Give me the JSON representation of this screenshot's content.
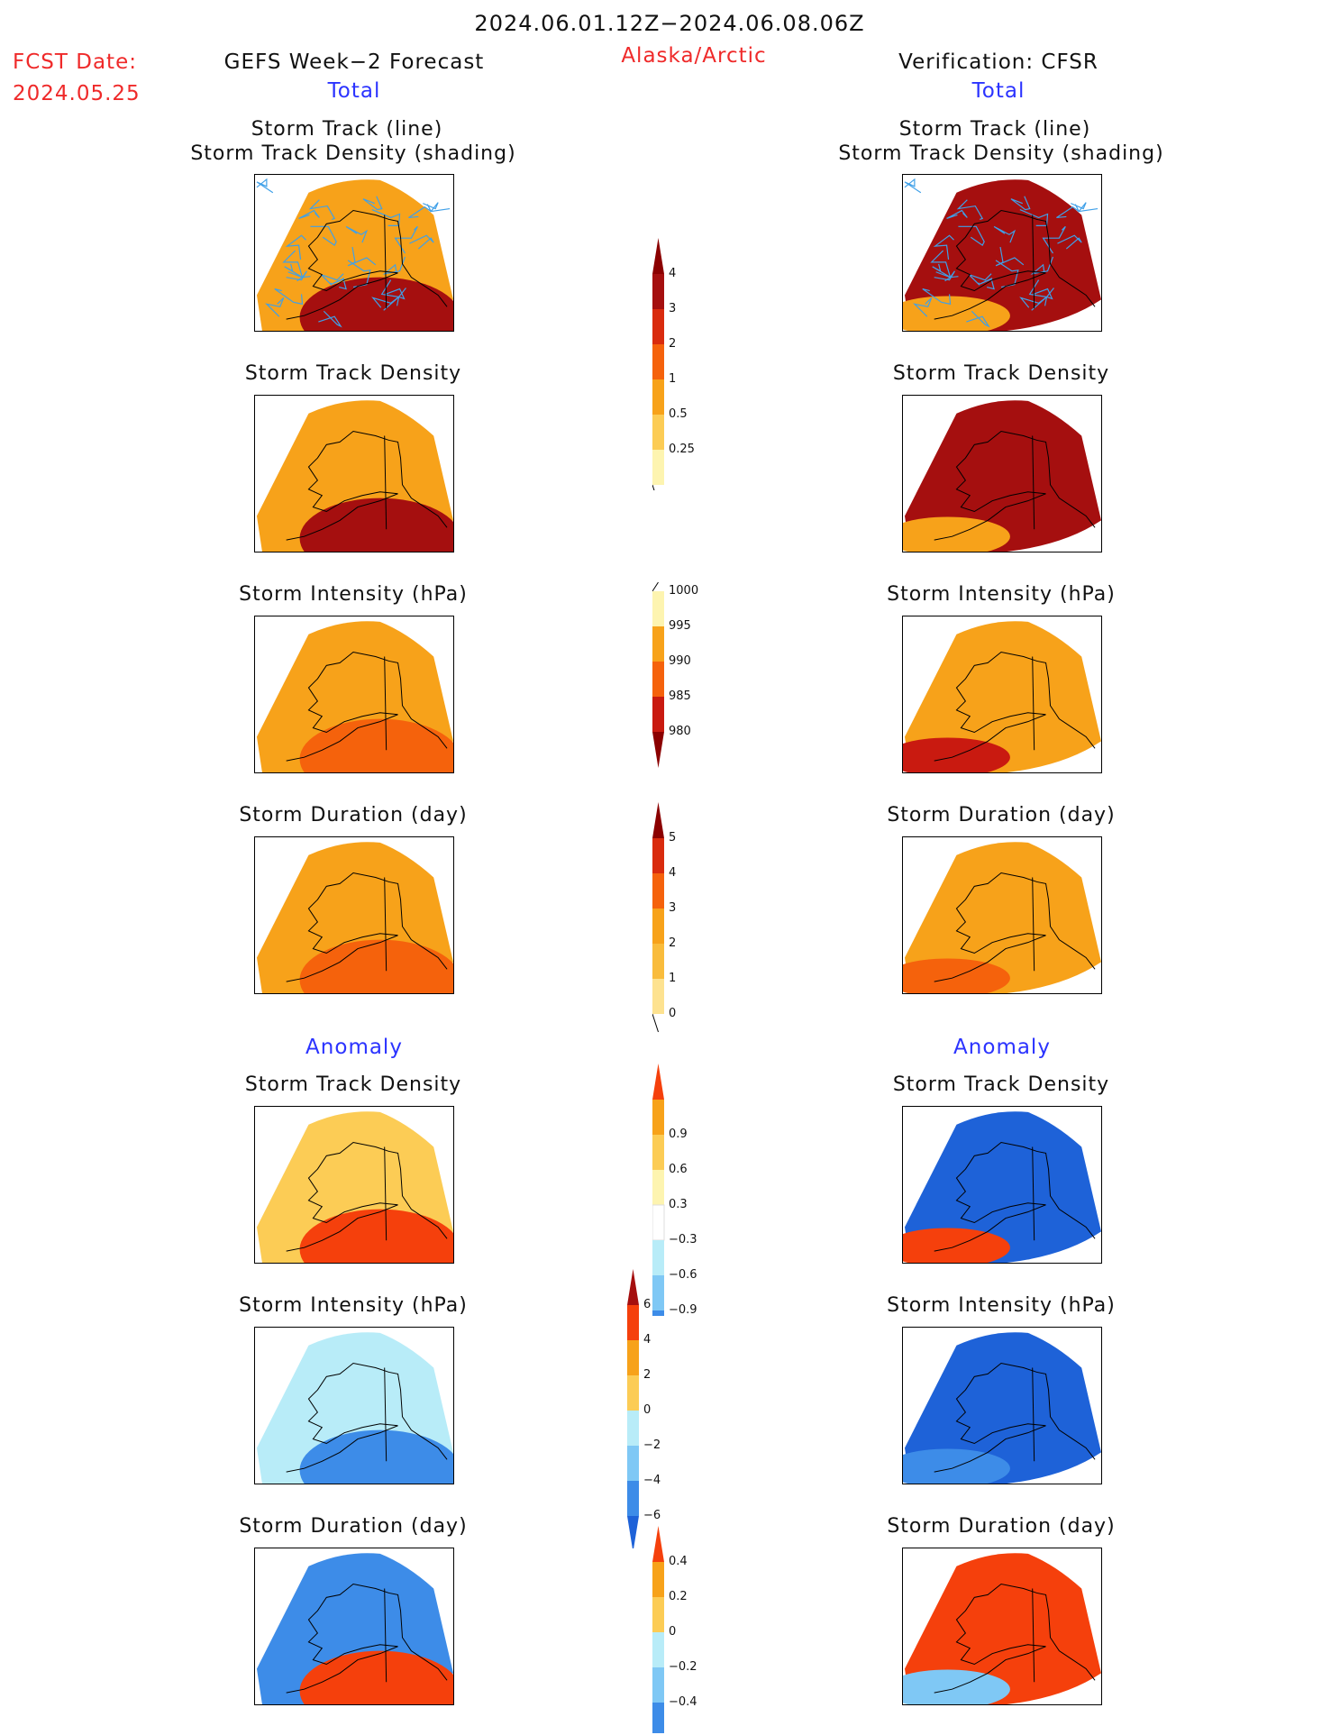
{
  "header": {
    "period": "2024.06.01.12Z−2024.06.08.06Z",
    "fcst_label": "FCST Date:",
    "fcst_date": "2024.05.25",
    "forecast_title": "GEFS Week−2 Forecast",
    "region": "Alaska/Arctic",
    "verification_title": "Verification: CFSR",
    "left_section_total": "Total",
    "right_section_total": "Total"
  },
  "section_labels": {
    "anomaly_left": "Anomaly",
    "anomaly_right": "Anomaly"
  },
  "panel_titles": {
    "track_line": "Storm Track (line)",
    "track_shading": "Storm Track Density (shading)",
    "density": "Storm Track Density",
    "intensity": "Storm Intensity (hPa)",
    "duration": "Storm Duration (day)"
  },
  "colorbars": {
    "total_density": {
      "labels": [
        "4",
        "3",
        "2",
        "1",
        "0.5",
        "0.25"
      ],
      "colors": [
        "#a50f0f",
        "#d92b0e",
        "#f5620c",
        "#f7a21a",
        "#fccc55",
        "#fdf4b0"
      ],
      "top_arrow": "#8b0000",
      "bottom": "none"
    },
    "total_intensity": {
      "labels": [
        "1000",
        "995",
        "990",
        "985",
        "980"
      ],
      "colors": [
        "#fdf4b0",
        "#f7a21a",
        "#f5620c",
        "#c91a10"
      ],
      "top": "none",
      "bottom_arrow": "#8b0000"
    },
    "total_duration": {
      "labels": [
        "5",
        "4",
        "3",
        "2",
        "1",
        "0"
      ],
      "colors": [
        "#d92b0e",
        "#f5620c",
        "#f7a21a",
        "#f9bc3c",
        "#fde290"
      ],
      "top_arrow": "#8b0000",
      "bottom": "none"
    },
    "anom_density": {
      "labels": [
        "0.9",
        "0.6",
        "0.3",
        "−0.3",
        "−0.6",
        "−0.9"
      ],
      "colors": [
        "#f7a21a",
        "#fccc55",
        "#fdf4b0",
        "#ffffff",
        "#b8ecf8",
        "#7fc8f5",
        "#3d8ce8"
      ],
      "top_arrow": "#f5400c",
      "bottom_arrow": "#1e62d8"
    },
    "anom_intensity": {
      "labels": [
        "6",
        "4",
        "2",
        "0",
        "−2",
        "−4",
        "−6"
      ],
      "colors": [
        "#f5400c",
        "#f7a21a",
        "#fccc55",
        "#b8ecf8",
        "#7fc8f5",
        "#3d8ce8"
      ],
      "top_arrow": "#a50f0f",
      "bottom_arrow": "#1e62d8"
    },
    "anom_duration": {
      "labels": [
        "0.4",
        "0.2",
        "0",
        "−0.2",
        "−0.4"
      ],
      "colors": [
        "#f7a21a",
        "#fccc55",
        "#b8ecf8",
        "#7fc8f5",
        "#3d8ce8"
      ],
      "top_arrow": "#f5400c",
      "bottom_arrow": "#1e62d8"
    }
  },
  "maps": [
    {
      "id": "fc-track",
      "col": "left",
      "fill": "#f7a21a",
      "hot": "#a50f0f",
      "tracks": true
    },
    {
      "id": "fc-density",
      "col": "left",
      "fill": "#f7a21a",
      "hot": "#a50f0f"
    },
    {
      "id": "fc-intensity",
      "col": "left",
      "fill": "#f7a21a",
      "hot": "#f5620c"
    },
    {
      "id": "fc-duration",
      "col": "left",
      "fill": "#f7a21a",
      "hot": "#f5620c"
    },
    {
      "id": "fc-anom-density",
      "col": "left",
      "fill": "#fccc55",
      "hot": "#f5400c"
    },
    {
      "id": "fc-anom-intensity",
      "col": "left",
      "fill": "#b8ecf8",
      "hot": "#3d8ce8"
    },
    {
      "id": "fc-anom-duration",
      "col": "left",
      "fill": "#3d8ce8",
      "hot": "#f5400c"
    },
    {
      "id": "vf-track",
      "col": "right",
      "fill": "#a50f0f",
      "hot": "#f7a21a",
      "tracks": true
    },
    {
      "id": "vf-density",
      "col": "right",
      "fill": "#a50f0f",
      "hot": "#f7a21a"
    },
    {
      "id": "vf-intensity",
      "col": "right",
      "fill": "#f7a21a",
      "hot": "#c91a10"
    },
    {
      "id": "vf-duration",
      "col": "right",
      "fill": "#f7a21a",
      "hot": "#f5620c"
    },
    {
      "id": "vf-anom-density",
      "col": "right",
      "fill": "#1e62d8",
      "hot": "#f5400c"
    },
    {
      "id": "vf-anom-intensity",
      "col": "right",
      "fill": "#1e62d8",
      "hot": "#3d8ce8"
    },
    {
      "id": "vf-anom-duration",
      "col": "right",
      "fill": "#f5400c",
      "hot": "#7fc8f5"
    }
  ]
}
